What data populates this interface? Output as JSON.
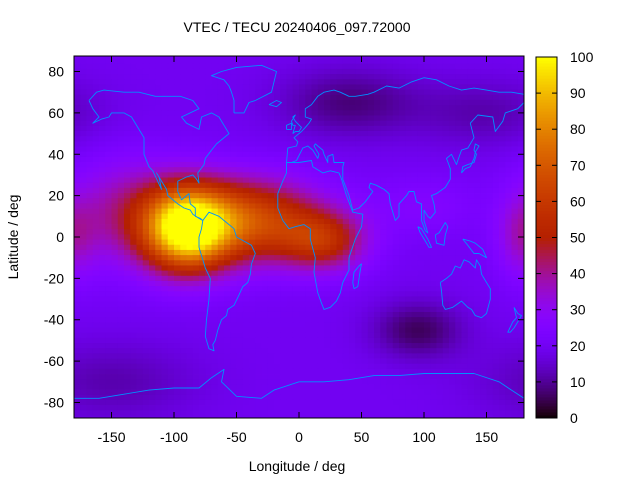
{
  "chart_data": {
    "type": "heatmap",
    "title": "VTEC / TECU 20240406_097.72000",
    "xlabel": "Longitude / deg",
    "ylabel": "Latitude / deg",
    "xlim": [
      -180,
      180
    ],
    "ylim": [
      -87.5,
      87.5
    ],
    "xticks": [
      -150,
      -100,
      -50,
      0,
      50,
      100,
      150
    ],
    "yticks": [
      -80,
      -60,
      -40,
      -20,
      0,
      20,
      40,
      60,
      80
    ],
    "colorbar": {
      "min": 0,
      "max": 100,
      "ticks": [
        0,
        10,
        20,
        30,
        40,
        50,
        60,
        70,
        80,
        90,
        100
      ],
      "colormap": "gnuplot-rgbformulae-7-5-15",
      "colors": [
        "#000000",
        "#3a0e7a",
        "#7a00ff",
        "#a81bd0",
        "#c73e2a",
        "#e07010",
        "#f0b000",
        "#ffff00"
      ]
    },
    "grid": false,
    "grid_resolution": {
      "dlon": 5,
      "dlat": 2.5
    },
    "field_description": "VTEC peaks near 100 TECU at about lon -90, lat 5; equatorial crest extends east to about lon 40; background 15-25 TECU; minima near lon 95 lat -45 and lon 40 lat 65",
    "coastline_color": "#0090ff"
  }
}
